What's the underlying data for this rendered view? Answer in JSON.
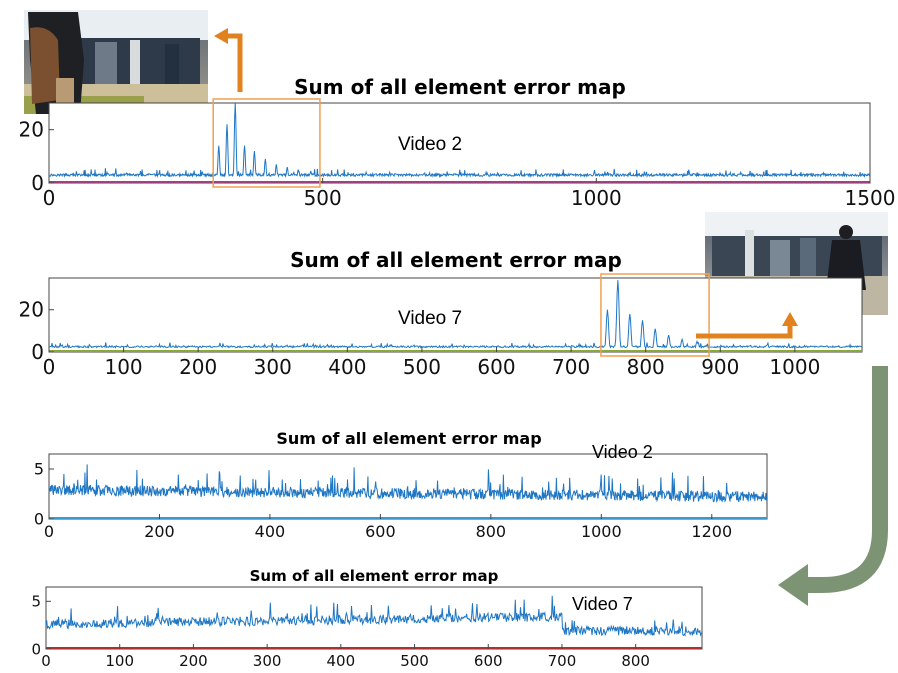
{
  "colors": {
    "series": "#1f77c4",
    "axis": "#444444",
    "highlight_box": "#f0a050",
    "arrow_orange": "#e2821f",
    "arrow_green": "#7c9474",
    "baseline_1": "#a04080",
    "baseline_2": "#8aa838",
    "baseline_3": "#3a9ad0",
    "baseline_4": "#b03030"
  },
  "photos": [
    {
      "name": "video-2-frame",
      "icon": "pedestrian-with-backpack-photo"
    },
    {
      "name": "video-7-frame",
      "icon": "pedestrian-walking-photo"
    }
  ],
  "chart_data": [
    {
      "type": "line",
      "title": "Sum of all element error map",
      "annotation": "Video 2",
      "xlim": [
        0,
        1500
      ],
      "ylim": [
        0,
        30
      ],
      "xticks": [
        0,
        500,
        1000,
        1500
      ],
      "yticks": [
        0,
        20
      ],
      "series": [
        {
          "profile": "baseline_with_peak",
          "length": 1500,
          "baseline": 3.0,
          "noise": 0.8,
          "peaks": [
            [
              310,
              14
            ],
            [
              325,
              22
            ],
            [
              340,
              30
            ],
            [
              357,
              14
            ],
            [
              375,
              12
            ],
            [
              395,
              9
            ],
            [
              415,
              7
            ],
            [
              435,
              6
            ],
            [
              455,
              5
            ],
            [
              478,
              4.5
            ]
          ]
        }
      ],
      "highlight": {
        "x_start": 300,
        "x_end": 495
      }
    },
    {
      "type": "line",
      "title": "Sum of all element error map",
      "annotation": "Video 7",
      "xlim": [
        0,
        1090
      ],
      "ylim": [
        0,
        35
      ],
      "xticks": [
        0,
        100,
        200,
        300,
        400,
        500,
        600,
        700,
        800,
        900,
        1000
      ],
      "yticks": [
        0,
        20
      ],
      "series": [
        {
          "profile": "baseline_with_peak",
          "length": 1090,
          "baseline": 2.5,
          "noise": 0.7,
          "peaks": [
            [
              748,
              20
            ],
            [
              762,
              34
            ],
            [
              778,
              18
            ],
            [
              795,
              15
            ],
            [
              812,
              11
            ],
            [
              830,
              8
            ],
            [
              848,
              6
            ],
            [
              868,
              5
            ]
          ]
        }
      ],
      "highlight": {
        "x_start": 740,
        "x_end": 885
      }
    },
    {
      "type": "line",
      "title": "Sum of all element error map",
      "annotation": "Video 2",
      "xlim": [
        0,
        1300
      ],
      "ylim": [
        0,
        6.5
      ],
      "xticks": [
        0,
        200,
        400,
        600,
        800,
        1000,
        1200
      ],
      "yticks": [
        0,
        5
      ],
      "series": [
        {
          "profile": "noisy",
          "length": 1300,
          "baseline": 2.9,
          "trend_end": 2.2,
          "noise": 0.9
        }
      ]
    },
    {
      "type": "line",
      "title": "Sum of all element error map",
      "annotation": "Video 7",
      "xlim": [
        0,
        890
      ],
      "ylim": [
        0,
        6.5
      ],
      "xticks": [
        0,
        100,
        200,
        300,
        400,
        500,
        600,
        700,
        800
      ],
      "yticks": [
        0,
        5
      ],
      "series": [
        {
          "profile": "noisy_step",
          "length": 890,
          "baseline": 2.6,
          "mid": 3.4,
          "step_at": 700,
          "after": 1.9,
          "noise": 0.8
        }
      ]
    }
  ]
}
